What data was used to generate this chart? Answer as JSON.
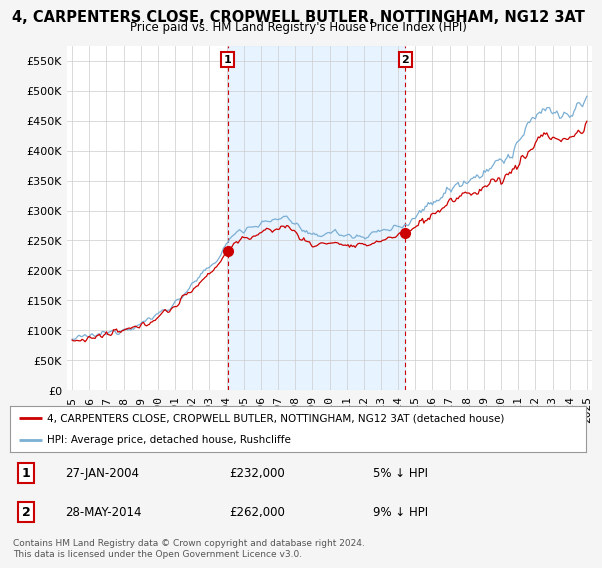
{
  "title": "4, CARPENTERS CLOSE, CROPWELL BUTLER, NOTTINGHAM, NG12 3AT",
  "subtitle": "Price paid vs. HM Land Registry's House Price Index (HPI)",
  "legend_line1": "4, CARPENTERS CLOSE, CROPWELL BUTLER, NOTTINGHAM, NG12 3AT (detached house)",
  "legend_line2": "HPI: Average price, detached house, Rushcliffe",
  "annotation1_date": "27-JAN-2004",
  "annotation1_price": 232000,
  "annotation1_label": "5% ↓ HPI",
  "annotation2_date": "28-MAY-2014",
  "annotation2_price": 262000,
  "annotation2_label": "9% ↓ HPI",
  "sale1_x": 2004.07,
  "sale1_y": 232000,
  "sale2_x": 2014.41,
  "sale2_y": 262000,
  "hpi_color": "#7bafd4",
  "price_color": "#cc0000",
  "marker_color": "#cc0000",
  "vline_color": "#cc0000",
  "background_color": "#f5f5f5",
  "plot_bg_color": "#ffffff",
  "band_color": "#ddeeff",
  "footer": "Contains HM Land Registry data © Crown copyright and database right 2024.\nThis data is licensed under the Open Government Licence v3.0.",
  "ylim": [
    0,
    575000
  ],
  "yticks": [
    0,
    50000,
    100000,
    150000,
    200000,
    250000,
    300000,
    350000,
    400000,
    450000,
    500000,
    550000
  ],
  "xlim_start": 1994.7,
  "xlim_end": 2025.3
}
